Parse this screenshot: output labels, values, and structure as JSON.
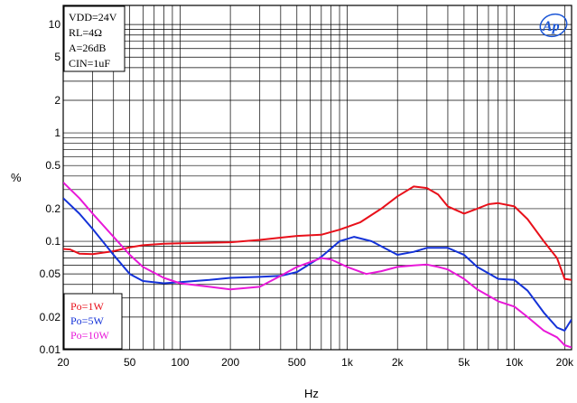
{
  "chart_data": {
    "type": "line",
    "title": "",
    "xlabel": "Hz",
    "ylabel": "%",
    "x_scale": "log",
    "y_scale": "log",
    "xlim": [
      20,
      22000
    ],
    "ylim": [
      0.01,
      15
    ],
    "grid": true,
    "x_tick_labels": [
      {
        "value": 20,
        "label": "20"
      },
      {
        "value": 50,
        "label": "50"
      },
      {
        "value": 100,
        "label": "100"
      },
      {
        "value": 200,
        "label": "200"
      },
      {
        "value": 500,
        "label": "500"
      },
      {
        "value": 1000,
        "label": "1k"
      },
      {
        "value": 2000,
        "label": "2k"
      },
      {
        "value": 5000,
        "label": "5k"
      },
      {
        "value": 10000,
        "label": "10k"
      },
      {
        "value": 20000,
        "label": "20k"
      }
    ],
    "y_tick_labels": [
      {
        "value": 10,
        "label": "10"
      },
      {
        "value": 5,
        "label": "5"
      },
      {
        "value": 2,
        "label": "2"
      },
      {
        "value": 1,
        "label": "1"
      },
      {
        "value": 0.5,
        "label": "0.5"
      },
      {
        "value": 0.2,
        "label": "0.2"
      },
      {
        "value": 0.1,
        "label": "0.1"
      },
      {
        "value": 0.05,
        "label": "0.05"
      },
      {
        "value": 0.02,
        "label": "0.02"
      },
      {
        "value": 0.01,
        "label": "0.01"
      }
    ],
    "conditions": [
      "VDD=24V",
      "RL=4Ω",
      "A=26dB",
      "CIN=1uF"
    ],
    "logo_text": "Ap",
    "legend_position": "bottom-left",
    "series": [
      {
        "name": "Po=1W",
        "color": "#e8101a",
        "points": [
          [
            20,
            0.085
          ],
          [
            22,
            0.084
          ],
          [
            25,
            0.077
          ],
          [
            30,
            0.076
          ],
          [
            40,
            0.081
          ],
          [
            50,
            0.088
          ],
          [
            60,
            0.092
          ],
          [
            80,
            0.095
          ],
          [
            100,
            0.096
          ],
          [
            150,
            0.097
          ],
          [
            200,
            0.098
          ],
          [
            300,
            0.103
          ],
          [
            400,
            0.108
          ],
          [
            500,
            0.112
          ],
          [
            700,
            0.115
          ],
          [
            900,
            0.128
          ],
          [
            1200,
            0.15
          ],
          [
            1600,
            0.2
          ],
          [
            2000,
            0.26
          ],
          [
            2500,
            0.32
          ],
          [
            3000,
            0.31
          ],
          [
            3500,
            0.27
          ],
          [
            4000,
            0.21
          ],
          [
            5000,
            0.18
          ],
          [
            6000,
            0.2
          ],
          [
            7000,
            0.22
          ],
          [
            8000,
            0.225
          ],
          [
            10000,
            0.21
          ],
          [
            12000,
            0.16
          ],
          [
            15000,
            0.1
          ],
          [
            18000,
            0.07
          ],
          [
            20000,
            0.045
          ],
          [
            22000,
            0.044
          ]
        ]
      },
      {
        "name": "Po=5W",
        "color": "#1432d8",
        "points": [
          [
            20,
            0.25
          ],
          [
            25,
            0.18
          ],
          [
            30,
            0.13
          ],
          [
            40,
            0.075
          ],
          [
            50,
            0.05
          ],
          [
            60,
            0.043
          ],
          [
            80,
            0.041
          ],
          [
            100,
            0.042
          ],
          [
            150,
            0.044
          ],
          [
            200,
            0.046
          ],
          [
            300,
            0.047
          ],
          [
            400,
            0.048
          ],
          [
            500,
            0.052
          ],
          [
            700,
            0.072
          ],
          [
            900,
            0.1
          ],
          [
            1100,
            0.11
          ],
          [
            1400,
            0.1
          ],
          [
            2000,
            0.075
          ],
          [
            2500,
            0.08
          ],
          [
            3000,
            0.087
          ],
          [
            4000,
            0.087
          ],
          [
            5000,
            0.075
          ],
          [
            6000,
            0.058
          ],
          [
            8000,
            0.045
          ],
          [
            10000,
            0.044
          ],
          [
            12000,
            0.035
          ],
          [
            15000,
            0.022
          ],
          [
            18000,
            0.016
          ],
          [
            20000,
            0.015
          ],
          [
            21000,
            0.017
          ],
          [
            22000,
            0.019
          ]
        ]
      },
      {
        "name": "Po=10W",
        "color": "#e818d8",
        "points": [
          [
            20,
            0.35
          ],
          [
            25,
            0.25
          ],
          [
            30,
            0.18
          ],
          [
            40,
            0.11
          ],
          [
            50,
            0.075
          ],
          [
            60,
            0.058
          ],
          [
            80,
            0.046
          ],
          [
            100,
            0.041
          ],
          [
            150,
            0.038
          ],
          [
            200,
            0.036
          ],
          [
            300,
            0.038
          ],
          [
            400,
            0.048
          ],
          [
            500,
            0.058
          ],
          [
            700,
            0.07
          ],
          [
            800,
            0.068
          ],
          [
            1000,
            0.058
          ],
          [
            1300,
            0.05
          ],
          [
            1600,
            0.053
          ],
          [
            2000,
            0.058
          ],
          [
            2500,
            0.06
          ],
          [
            3000,
            0.061
          ],
          [
            3500,
            0.058
          ],
          [
            4000,
            0.055
          ],
          [
            5000,
            0.045
          ],
          [
            6000,
            0.036
          ],
          [
            8000,
            0.028
          ],
          [
            10000,
            0.025
          ],
          [
            12000,
            0.02
          ],
          [
            15000,
            0.015
          ],
          [
            18000,
            0.013
          ],
          [
            20000,
            0.011
          ],
          [
            22000,
            0.0105
          ]
        ]
      }
    ]
  }
}
